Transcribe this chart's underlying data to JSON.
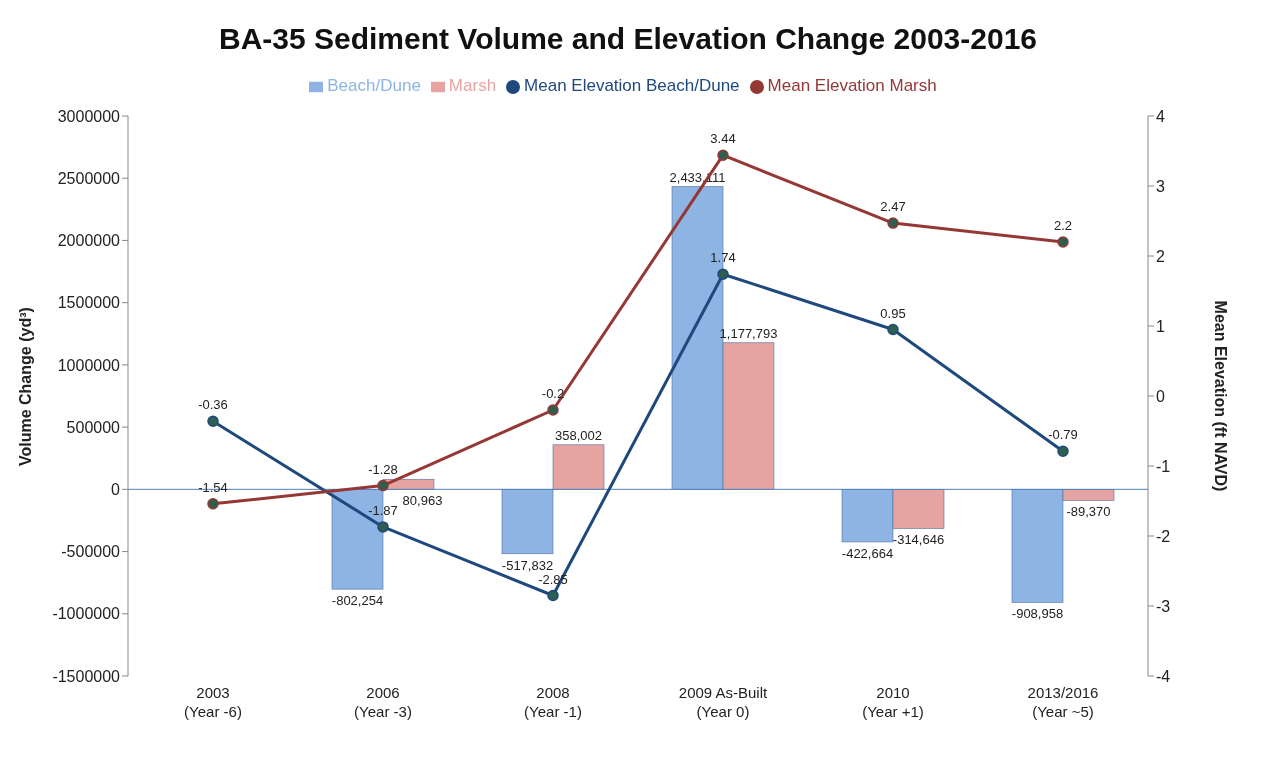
{
  "chart_data": {
    "type": "bar",
    "title": "BA-35 Sediment Volume and Elevation Change 2003-2016",
    "ylabel": "Volume Change (yd³)",
    "y2label": "Mean Elevation (ft NAVD)",
    "categories": [
      "2003\n(Year -6)",
      "2006\n(Year -3)",
      "2008\n(Year -1)",
      "2009 As-Built\n(Year 0)",
      "2010\n(Year +1)",
      "2013/2016\n(Year ~5)"
    ],
    "series": [
      {
        "name": "Beach/Dune",
        "color": "#8eb4e3",
        "values": [
          null,
          -802254,
          -517832,
          2433111,
          -422664,
          -908958
        ],
        "value_labels": [
          null,
          "-802,254",
          "-517,832",
          "2,433,111",
          "-422,664",
          "-908,958"
        ]
      },
      {
        "name": "Marsh",
        "color": "#e6a3a2",
        "values": [
          null,
          80963,
          358002,
          1177793,
          -314646,
          -89370
        ],
        "value_labels": [
          null,
          "80,963",
          "358,002",
          "1,177,793",
          "-314,646",
          "-89,370"
        ]
      },
      {
        "name": "Mean Elevation Beach/Dune",
        "type": "line",
        "axis": "y2",
        "color": "#1f497d",
        "values": [
          -0.36,
          -1.87,
          -2.85,
          1.74,
          0.95,
          -0.79
        ],
        "value_labels": [
          "-0.36",
          "-1.87",
          "-2.85",
          "1.74",
          "0.95",
          "-0.79"
        ]
      },
      {
        "name": "Mean Elevation Marsh",
        "type": "line",
        "axis": "y2",
        "color": "#953735",
        "values": [
          -1.54,
          -1.28,
          -0.2,
          3.44,
          2.47,
          2.2
        ],
        "value_labels": [
          "-1.54",
          "-1.28",
          "-0.2",
          "3.44",
          "2.47",
          "2.2"
        ]
      }
    ],
    "ylim": [
      -1500000,
      3000000
    ],
    "yticks": [
      -1500000,
      -1000000,
      -500000,
      0,
      500000,
      1000000,
      1500000,
      2000000,
      2500000,
      3000000
    ],
    "y2lim": [
      -4,
      4
    ],
    "y2ticks": [
      -4,
      -3,
      -2,
      -1,
      0,
      1,
      2,
      3,
      4
    ],
    "ref_lines": [
      {
        "axis": "y",
        "value": 0,
        "color": "#4f81bd"
      }
    ],
    "legend": "top",
    "marker": "circle",
    "line_style": "solid"
  }
}
